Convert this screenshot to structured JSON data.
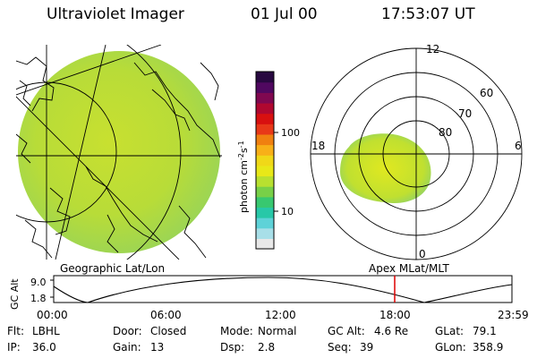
{
  "header": {
    "instrument": "Ultraviolet Imager",
    "date": "01 Jul 00",
    "time": "17:53:07 UT"
  },
  "geo_panel": {
    "caption": "Geographic Lat/Lon"
  },
  "polar_panel": {
    "caption": "Apex MLat/MLT",
    "mlt_labels": {
      "top": "12",
      "left": "18",
      "right": "6",
      "bottom": "0"
    },
    "lat_labels": [
      "60",
      "70",
      "80"
    ]
  },
  "colorbar": {
    "unit_label": "photon cm",
    "unit_exp1": "-2",
    "unit_s": "s",
    "unit_exp2": "-1",
    "tick_labels": [
      "100",
      "10"
    ],
    "colors": [
      "#e8e8e8",
      "#a8dfe8",
      "#5ed2d8",
      "#28c8a8",
      "#38c870",
      "#78d048",
      "#b8e030",
      "#e8e818",
      "#f0d818",
      "#f8b018",
      "#f08010",
      "#e83818",
      "#d81010",
      "#b00830",
      "#800850",
      "#500860",
      "#280840"
    ]
  },
  "altitude_plot": {
    "ylabel": "GC Alt",
    "yticks": [
      "9.0",
      "1.8"
    ],
    "xticks": [
      "00:00",
      "06:00",
      "12:00",
      "18:00",
      "23:59"
    ],
    "current_time_color": "#dd0000"
  },
  "status": {
    "row1": [
      {
        "label": "Flt:",
        "value": "LBHL"
      },
      {
        "label": "Door:",
        "value": "Closed"
      },
      {
        "label": "Mode:",
        "value": "Normal"
      },
      {
        "label": "GC Alt:",
        "value": "4.6 Re"
      },
      {
        "label": "GLat:",
        "value": "79.1"
      }
    ],
    "row2": [
      {
        "label": "IP:",
        "value": "36.0"
      },
      {
        "label": "Gain:",
        "value": "13"
      },
      {
        "label": "Dsp:",
        "value": "2.8"
      },
      {
        "label": "Seq:",
        "value": "39"
      },
      {
        "label": "GLon:",
        "value": "358.9"
      }
    ]
  }
}
